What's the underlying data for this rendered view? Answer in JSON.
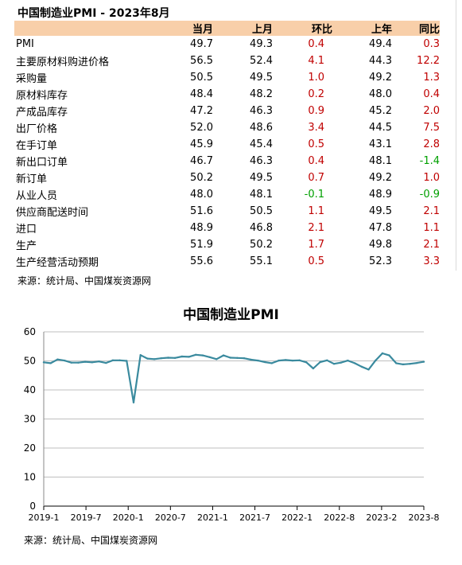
{
  "table": {
    "title": "中国制造业PMI - 2023年8月",
    "headers": [
      "",
      "当月",
      "上月",
      "环比",
      "上年",
      "同比"
    ],
    "rows": [
      {
        "label": "PMI",
        "cur": "49.7",
        "prev": "49.3",
        "mom": "0.4",
        "ly": "49.4",
        "yoy": "0.3"
      },
      {
        "label": "主要原材料购进价格",
        "cur": "56.5",
        "prev": "52.4",
        "mom": "4.1",
        "ly": "44.3",
        "yoy": "12.2"
      },
      {
        "label": "采购量",
        "cur": "50.5",
        "prev": "49.5",
        "mom": "1.0",
        "ly": "49.2",
        "yoy": "1.3"
      },
      {
        "label": "原材料库存",
        "cur": "48.4",
        "prev": "48.2",
        "mom": "0.2",
        "ly": "48.0",
        "yoy": "0.4"
      },
      {
        "label": "产成品库存",
        "cur": "47.2",
        "prev": "46.3",
        "mom": "0.9",
        "ly": "45.2",
        "yoy": "2.0"
      },
      {
        "label": "出厂价格",
        "cur": "52.0",
        "prev": "48.6",
        "mom": "3.4",
        "ly": "44.5",
        "yoy": "7.5"
      },
      {
        "label": "在手订单",
        "cur": "45.9",
        "prev": "45.4",
        "mom": "0.5",
        "ly": "43.1",
        "yoy": "2.8"
      },
      {
        "label": "新出口订单",
        "cur": "46.7",
        "prev": "46.3",
        "mom": "0.4",
        "ly": "48.1",
        "yoy": "-1.4"
      },
      {
        "label": "新订单",
        "cur": "50.2",
        "prev": "49.5",
        "mom": "0.7",
        "ly": "49.2",
        "yoy": "1.0"
      },
      {
        "label": "从业人员",
        "cur": "48.0",
        "prev": "48.1",
        "mom": "-0.1",
        "ly": "48.9",
        "yoy": "-0.9"
      },
      {
        "label": "供应商配送时间",
        "cur": "51.6",
        "prev": "50.5",
        "mom": "1.1",
        "ly": "49.5",
        "yoy": "2.1"
      },
      {
        "label": "进口",
        "cur": "48.9",
        "prev": "46.8",
        "mom": "2.1",
        "ly": "47.8",
        "yoy": "1.1"
      },
      {
        "label": "生产",
        "cur": "51.9",
        "prev": "50.2",
        "mom": "1.7",
        "ly": "49.8",
        "yoy": "2.1"
      },
      {
        "label": "生产经营活动预期",
        "cur": "55.6",
        "prev": "55.1",
        "mom": "0.5",
        "ly": "52.3",
        "yoy": "3.3"
      }
    ],
    "source": "来源：统计局、中国煤炭资源网"
  },
  "colors": {
    "header_bg": "#f8cfa9",
    "positive": "#c00000",
    "negative": "#00a000",
    "line": "#3a8a9e",
    "grid": "#bfbfbf"
  },
  "chart_data": {
    "type": "line",
    "title": "中国制造业PMI",
    "xlabel": "",
    "ylabel": "",
    "ylim": [
      0,
      60
    ],
    "yticks": [
      0,
      10,
      20,
      30,
      40,
      50,
      60
    ],
    "xtick_labels": [
      "2019-1",
      "2019-7",
      "2020-1",
      "2020-7",
      "2021-1",
      "2021-7",
      "2022-1",
      "2022-8",
      "2023-2",
      "2023-8"
    ],
    "grid": true,
    "series": [
      {
        "values": [
          49.5,
          49.2,
          50.5,
          50.1,
          49.4,
          49.4,
          49.7,
          49.5,
          49.8,
          49.3,
          50.2,
          50.2,
          50.0,
          35.7,
          52.0,
          50.8,
          50.6,
          50.9,
          51.1,
          51.0,
          51.5,
          51.4,
          52.1,
          51.9,
          51.3,
          50.6,
          51.9,
          51.1,
          51.0,
          50.9,
          50.4,
          50.1,
          49.6,
          49.2,
          50.1,
          50.3,
          50.1,
          50.2,
          49.5,
          47.4,
          49.6,
          50.2,
          49.0,
          49.4,
          50.1,
          49.2,
          48.0,
          47.0,
          50.1,
          52.6,
          51.9,
          49.2,
          48.8,
          49.0,
          49.3,
          49.7
        ]
      }
    ],
    "source": "来源：统计局、中国煤炭资源网"
  }
}
